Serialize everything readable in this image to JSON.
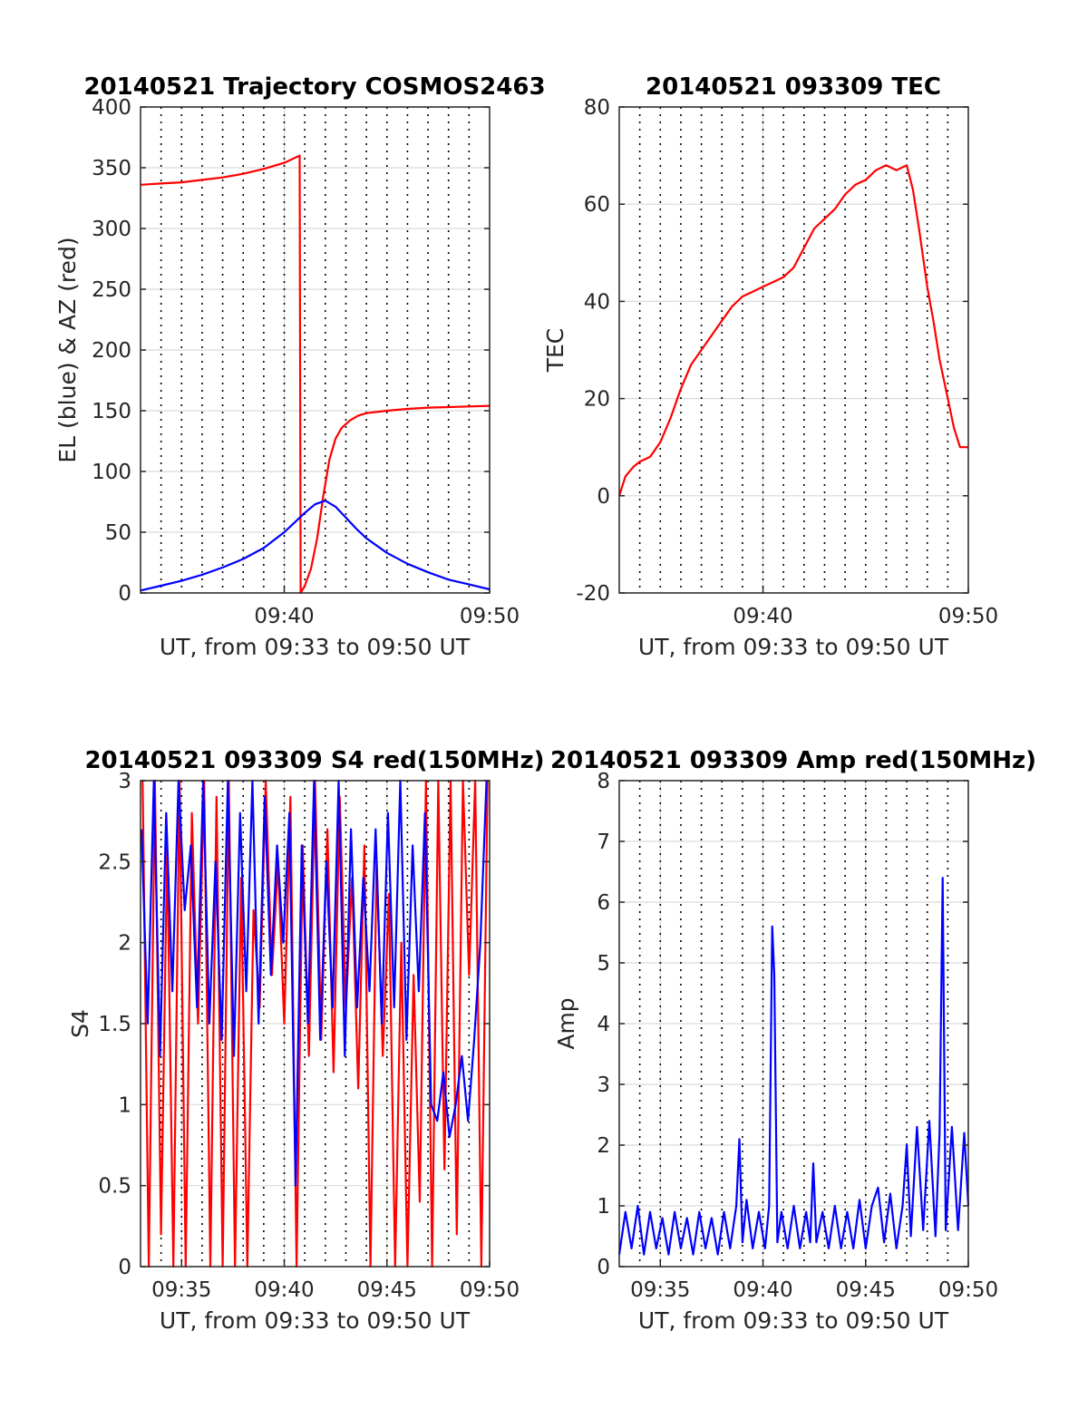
{
  "colors": {
    "el": "#0000ff",
    "az": "#ff0000",
    "tec": "#ff0000",
    "s4_red": "#ff0000",
    "s4_blue": "#0000ff",
    "amp": "#0000ff",
    "grid_dotted": "#000000",
    "grid_solid": "#d9d9d9"
  },
  "chart_data": [
    {
      "id": "traj",
      "type": "line",
      "title": "20140521 Trajectory COSMOS2463",
      "xlabel": "UT, from 09:33 to 09:50 UT",
      "ylabel": "EL (blue) & AZ (red)",
      "xlim": [
        33,
        50
      ],
      "ylim": [
        0,
        400
      ],
      "yticks": [
        0,
        50,
        100,
        150,
        200,
        250,
        300,
        350,
        400
      ],
      "ytick_labels": [
        "0",
        "50",
        "100",
        "150",
        "200",
        "250",
        "300",
        "350",
        "400"
      ],
      "xticks": [
        40,
        50
      ],
      "xtick_labels": [
        "09:40",
        "09:50"
      ],
      "grid_dotted_x": [
        34,
        35,
        36,
        37,
        38,
        39,
        40,
        41,
        42,
        43,
        44,
        45,
        46,
        47,
        48,
        49
      ],
      "grid": true,
      "series": [
        {
          "key": "az",
          "color": "#ff0000",
          "x": [
            33,
            34,
            35,
            36,
            37,
            38,
            39,
            40,
            40.5,
            40.75,
            40.8,
            41.0,
            41.3,
            41.6,
            41.9,
            42.2,
            42.5,
            42.8,
            43.2,
            43.6,
            44,
            45,
            46,
            47,
            48,
            49,
            50
          ],
          "values": [
            336,
            337,
            338,
            340,
            342,
            345,
            349,
            354,
            358,
            360,
            0,
            6,
            20,
            45,
            80,
            110,
            127,
            136,
            142,
            146,
            148,
            150,
            151.5,
            152.5,
            153,
            153.5,
            154
          ]
        },
        {
          "key": "el",
          "color": "#0000ff",
          "x": [
            33,
            34,
            35,
            36,
            37,
            38,
            39,
            40,
            40.5,
            41,
            41.5,
            42,
            42.5,
            43,
            43.5,
            44,
            45,
            46,
            47,
            48,
            49,
            50
          ],
          "values": [
            2,
            6,
            10,
            15,
            21,
            28,
            37,
            50,
            58,
            66,
            73,
            76,
            71,
            62,
            53,
            45,
            33,
            24,
            17,
            11,
            7,
            3
          ]
        }
      ]
    },
    {
      "id": "tec",
      "type": "line",
      "title": "20140521 093309 TEC",
      "xlabel": "UT, from 09:33 to 09:50 UT",
      "ylabel": "TEC",
      "xlim": [
        33,
        50
      ],
      "ylim": [
        -20,
        80
      ],
      "yticks": [
        -20,
        0,
        20,
        40,
        60,
        80
      ],
      "ytick_labels": [
        "-20",
        "0",
        "20",
        "40",
        "60",
        "80"
      ],
      "xticks": [
        40,
        50
      ],
      "xtick_labels": [
        "09:40",
        "09:50"
      ],
      "grid_dotted_x": [
        34,
        35,
        36,
        37,
        38,
        39,
        40,
        41,
        42,
        43,
        44,
        45,
        46,
        47,
        48,
        49
      ],
      "grid": true,
      "series": [
        {
          "key": "tec",
          "color": "#ff0000",
          "x": [
            33,
            33.3,
            33.7,
            34,
            34.5,
            35,
            35.5,
            36,
            36.5,
            37,
            37.5,
            38,
            38.5,
            39,
            39.5,
            40,
            40.5,
            41,
            41.5,
            42,
            42.5,
            43,
            43.5,
            44,
            44.5,
            45,
            45.5,
            46,
            46.5,
            47,
            47.3,
            47.6,
            48,
            48.3,
            48.6,
            49,
            49.3,
            49.6,
            50
          ],
          "values": [
            0,
            4,
            6,
            7,
            8,
            11,
            16,
            22,
            27,
            30,
            33,
            36,
            39,
            41,
            42,
            43,
            44,
            45,
            47,
            51,
            55,
            57,
            59,
            62,
            64,
            65,
            67,
            68,
            67,
            68,
            63,
            55,
            43,
            36,
            28,
            20,
            14,
            10,
            10
          ]
        }
      ]
    },
    {
      "id": "s4",
      "type": "line",
      "title": "20140521 093309 S4 red(150MHz)",
      "xlabel": "UT, from 09:33 to 09:50 UT",
      "ylabel": "S4",
      "xlim": [
        33,
        50
      ],
      "ylim": [
        0,
        3
      ],
      "yticks": [
        0,
        0.5,
        1,
        1.5,
        2,
        2.5,
        3
      ],
      "ytick_labels": [
        "0",
        "0.5",
        "1",
        "1.5",
        "2",
        "2.5",
        "3"
      ],
      "xticks": [
        35,
        40,
        45,
        50
      ],
      "xtick_labels": [
        "09:35",
        "09:40",
        "09:45",
        "09:50"
      ],
      "grid_dotted_x": [
        34,
        35,
        36,
        37,
        38,
        39,
        40,
        41,
        42,
        43,
        44,
        45,
        46,
        47,
        48,
        49
      ],
      "grid": true,
      "series": [
        {
          "key": "s4_red",
          "color": "#ff0000",
          "x": [
            33.1,
            33.4,
            33.7,
            34.0,
            34.3,
            34.6,
            34.9,
            35.2,
            35.5,
            35.8,
            36.1,
            36.4,
            36.7,
            37.0,
            37.3,
            37.6,
            37.9,
            38.2,
            38.5,
            38.8,
            39.1,
            39.4,
            39.7,
            40.0,
            40.3,
            40.6,
            40.9,
            41.2,
            41.5,
            41.8,
            42.1,
            42.4,
            42.7,
            43.0,
            43.3,
            43.6,
            43.9,
            44.2,
            44.5,
            44.8,
            45.1,
            45.4,
            45.7,
            46.0,
            46.3,
            46.6,
            46.9,
            47.2,
            47.5,
            47.8,
            48.1,
            48.4,
            48.7,
            49.0,
            49.3,
            49.6,
            49.9
          ],
          "values": [
            3,
            0,
            3,
            0.2,
            2.6,
            0,
            3,
            0,
            2.8,
            1.5,
            3,
            0,
            2.9,
            0,
            3,
            0,
            2.4,
            0,
            2.2,
            1.6,
            3,
            1.8,
            2.5,
            1.5,
            2.9,
            0,
            2.6,
            1.3,
            3,
            1.4,
            2.7,
            1.2,
            2.9,
            1.6,
            2.4,
            1.1,
            2.6,
            0,
            2.5,
            1.3,
            2.3,
            0,
            2.0,
            0,
            1.8,
            0.4,
            3,
            0,
            3,
            0.6,
            3,
            0.2,
            3,
            1.8,
            3,
            0,
            3
          ]
        },
        {
          "key": "s4_blue",
          "color": "#0000ff",
          "x": [
            33.05,
            33.35,
            33.65,
            33.95,
            34.25,
            34.55,
            34.85,
            35.15,
            35.45,
            35.75,
            36.05,
            36.35,
            36.65,
            36.95,
            37.25,
            37.55,
            37.85,
            38.15,
            38.45,
            38.75,
            39.05,
            39.35,
            39.65,
            39.95,
            40.25,
            40.55,
            40.85,
            41.15,
            41.45,
            41.75,
            42.05,
            42.35,
            42.65,
            42.95,
            43.25,
            43.55,
            43.85,
            44.15,
            44.45,
            44.75,
            45.05,
            45.35,
            45.65,
            45.95,
            46.25,
            46.55,
            46.85,
            47.15,
            47.45,
            47.75,
            48.05,
            48.35,
            48.65,
            48.95,
            49.25,
            49.55,
            49.85
          ],
          "values": [
            2.7,
            1.5,
            3,
            1.3,
            2.8,
            1.7,
            3,
            2.2,
            2.6,
            1.6,
            3,
            1.5,
            2.5,
            1.4,
            3,
            1.3,
            2.8,
            1.7,
            3,
            1.5,
            2.9,
            1.8,
            2.6,
            2.0,
            2.8,
            0.5,
            2.6,
            1.5,
            3,
            1.4,
            2.5,
            1.6,
            3,
            1.3,
            2.7,
            1.6,
            2.4,
            1.7,
            2.7,
            1.5,
            2.8,
            1.6,
            3,
            1.4,
            2.6,
            1.7,
            2.8,
            1.0,
            0.9,
            1.2,
            0.8,
            1.0,
            1.3,
            0.9,
            1.4,
            2.0,
            3
          ]
        }
      ]
    },
    {
      "id": "amp",
      "type": "line",
      "title": "20140521 093309 Amp red(150MHz)",
      "xlabel": "UT, from 09:33 to 09:50 UT",
      "ylabel": "Amp",
      "xlim": [
        33,
        50
      ],
      "ylim": [
        0,
        8
      ],
      "yticks": [
        0,
        1,
        2,
        3,
        4,
        5,
        6,
        7,
        8
      ],
      "ytick_labels": [
        "0",
        "1",
        "2",
        "3",
        "4",
        "5",
        "6",
        "7",
        "8"
      ],
      "xticks": [
        35,
        40,
        45,
        50
      ],
      "xtick_labels": [
        "09:35",
        "09:40",
        "09:45",
        "09:50"
      ],
      "grid_dotted_x": [
        34,
        35,
        36,
        37,
        38,
        39,
        40,
        41,
        42,
        43,
        44,
        45,
        46,
        47,
        48,
        49
      ],
      "grid": true,
      "series": [
        {
          "key": "amp",
          "color": "#0000ff",
          "x": [
            33,
            33.3,
            33.6,
            33.9,
            34.2,
            34.5,
            34.8,
            35.1,
            35.4,
            35.7,
            36.0,
            36.3,
            36.6,
            36.9,
            37.2,
            37.5,
            37.8,
            38.1,
            38.4,
            38.7,
            38.85,
            39.0,
            39.2,
            39.5,
            39.8,
            40.1,
            40.3,
            40.45,
            40.55,
            40.7,
            40.9,
            41.2,
            41.5,
            41.8,
            42.1,
            42.3,
            42.45,
            42.6,
            42.9,
            43.2,
            43.5,
            43.8,
            44.1,
            44.4,
            44.7,
            45.0,
            45.3,
            45.6,
            45.9,
            46.2,
            46.5,
            46.8,
            47.0,
            47.2,
            47.5,
            47.8,
            48.1,
            48.4,
            48.6,
            48.75,
            48.9,
            49.2,
            49.5,
            49.8,
            50
          ],
          "values": [
            0.2,
            0.9,
            0.3,
            1.0,
            0.2,
            0.9,
            0.3,
            0.8,
            0.2,
            0.9,
            0.3,
            0.8,
            0.2,
            0.9,
            0.3,
            0.8,
            0.2,
            0.9,
            0.3,
            1.0,
            2.1,
            0.4,
            1.1,
            0.3,
            0.9,
            0.3,
            1.0,
            5.6,
            4.8,
            0.4,
            0.9,
            0.3,
            1.0,
            0.3,
            0.9,
            0.4,
            1.7,
            0.4,
            0.9,
            0.3,
            1.0,
            0.3,
            0.9,
            0.3,
            1.1,
            0.3,
            1.0,
            1.3,
            0.4,
            1.2,
            0.3,
            1.0,
            2.0,
            0.5,
            2.3,
            0.6,
            2.4,
            0.5,
            2.2,
            6.4,
            0.6,
            2.3,
            0.6,
            2.2,
            1.0
          ]
        }
      ]
    }
  ]
}
